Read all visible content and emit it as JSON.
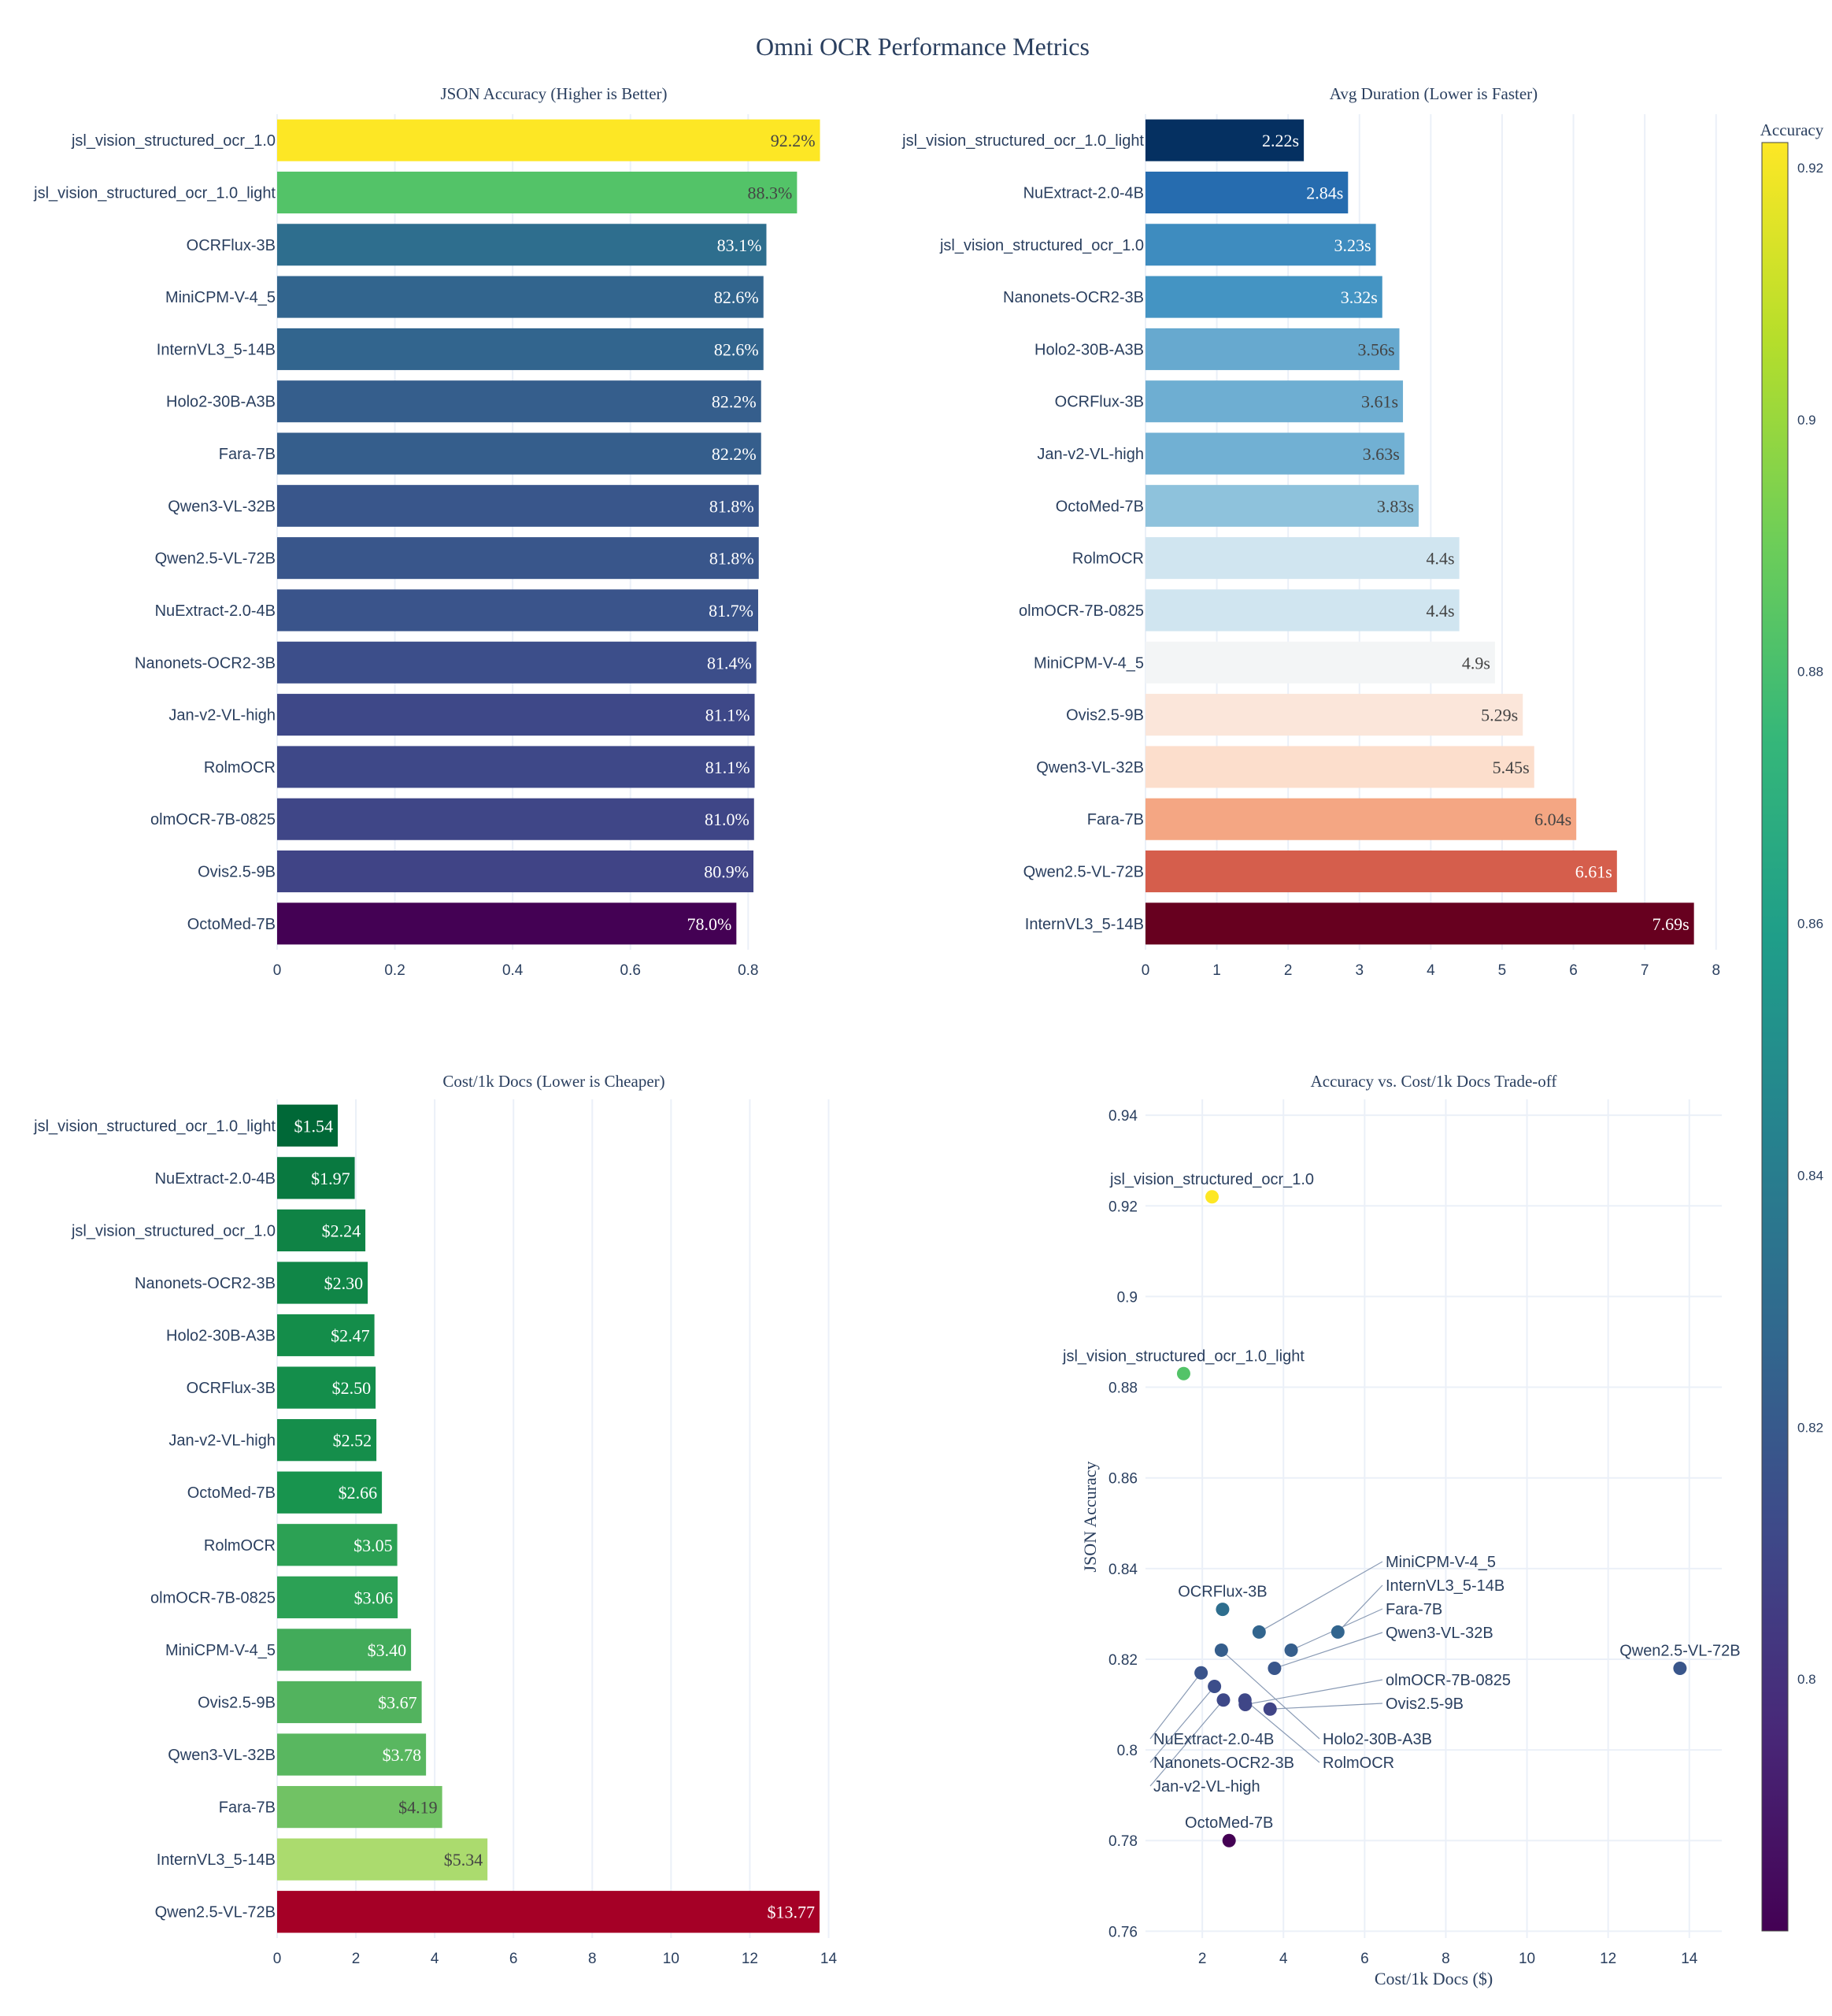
{
  "title": "Omni OCR Performance Metrics",
  "chart_data": [
    {
      "type": "bar",
      "orientation": "horizontal",
      "title": "JSON Accuracy (Higher is Better)",
      "categories": [
        "jsl_vision_structured_ocr_1.0",
        "jsl_vision_structured_ocr_1.0_light",
        "OCRFlux-3B",
        "MiniCPM-V-4_5",
        "InternVL3_5-14B",
        "Holo2-30B-A3B",
        "Fara-7B",
        "Qwen3-VL-32B",
        "Qwen2.5-VL-72B",
        "NuExtract-2.0-4B",
        "Nanonets-OCR2-3B",
        "Jan-v2-VL-high",
        "RolmOCR",
        "olmOCR-7B-0825",
        "Ovis2.5-9B",
        "OctoMed-7B"
      ],
      "values": [
        0.922,
        0.883,
        0.831,
        0.826,
        0.826,
        0.822,
        0.822,
        0.818,
        0.818,
        0.817,
        0.814,
        0.811,
        0.811,
        0.81,
        0.809,
        0.78
      ],
      "data_labels": [
        "92.2%",
        "88.3%",
        "83.1%",
        "82.6%",
        "82.6%",
        "82.2%",
        "82.2%",
        "81.8%",
        "81.8%",
        "81.7%",
        "81.4%",
        "81.1%",
        "81.1%",
        "81.0%",
        "80.9%",
        "78.0%"
      ],
      "xlim": [
        0,
        0.94
      ],
      "xticks": [
        "0",
        "0.2",
        "0.4",
        "0.6",
        "0.8"
      ],
      "colorscale": "Viridis",
      "grid": true
    },
    {
      "type": "bar",
      "orientation": "horizontal",
      "title": "Avg Duration (Lower is Faster)",
      "categories": [
        "jsl_vision_structured_ocr_1.0_light",
        "NuExtract-2.0-4B",
        "jsl_vision_structured_ocr_1.0",
        "Nanonets-OCR2-3B",
        "Holo2-30B-A3B",
        "OCRFlux-3B",
        "Jan-v2-VL-high",
        "OctoMed-7B",
        "RolmOCR",
        "olmOCR-7B-0825",
        "MiniCPM-V-4_5",
        "Ovis2.5-9B",
        "Qwen3-VL-32B",
        "Fara-7B",
        "Qwen2.5-VL-72B",
        "InternVL3_5-14B"
      ],
      "values": [
        2.22,
        2.84,
        3.23,
        3.32,
        3.56,
        3.61,
        3.63,
        3.83,
        4.4,
        4.4,
        4.9,
        5.29,
        5.45,
        6.04,
        6.61,
        7.69
      ],
      "data_labels": [
        "2.22s",
        "2.84s",
        "3.23s",
        "3.32s",
        "3.56s",
        "3.61s",
        "3.63s",
        "3.83s",
        "4.4s",
        "4.4s",
        "4.9s",
        "5.29s",
        "5.45s",
        "6.04s",
        "6.61s",
        "7.69s"
      ],
      "xlim": [
        0,
        8.08
      ],
      "xticks": [
        "0",
        "1",
        "2",
        "3",
        "4",
        "5",
        "6",
        "7",
        "8"
      ],
      "colorscale": "RdBu_r",
      "grid": true
    },
    {
      "type": "bar",
      "orientation": "horizontal",
      "title": "Cost/1k Docs (Lower is Cheaper)",
      "categories": [
        "jsl_vision_structured_ocr_1.0_light",
        "NuExtract-2.0-4B",
        "jsl_vision_structured_ocr_1.0",
        "Nanonets-OCR2-3B",
        "Holo2-30B-A3B",
        "OCRFlux-3B",
        "Jan-v2-VL-high",
        "OctoMed-7B",
        "RolmOCR",
        "olmOCR-7B-0825",
        "MiniCPM-V-4_5",
        "Ovis2.5-9B",
        "Qwen3-VL-32B",
        "Fara-7B",
        "InternVL3_5-14B",
        "Qwen2.5-VL-72B"
      ],
      "values": [
        1.54,
        1.97,
        2.24,
        2.3,
        2.47,
        2.5,
        2.52,
        2.66,
        3.05,
        3.06,
        3.4,
        3.67,
        3.78,
        4.19,
        5.34,
        13.77
      ],
      "data_labels": [
        "$1.54",
        "$1.97",
        "$2.24",
        "$2.30",
        "$2.47",
        "$2.50",
        "$2.52",
        "$2.66",
        "$3.05",
        "$3.06",
        "$3.40",
        "$3.67",
        "$3.78",
        "$4.19",
        "$5.34",
        "$13.77"
      ],
      "xlim": [
        0,
        14.05
      ],
      "xticks": [
        "0",
        "2",
        "4",
        "6",
        "8",
        "10",
        "12",
        "14"
      ],
      "colorscale": "RdYlGn_r",
      "grid": true
    },
    {
      "type": "scatter",
      "title": "Accuracy vs. Cost/1k Docs Trade-off",
      "xlabel": "Cost/1k Docs ($)",
      "ylabel": "JSON Accuracy",
      "xlim": [
        0.6,
        14.8
      ],
      "ylim": [
        0.7585,
        0.9435
      ],
      "xticks": [
        "2",
        "4",
        "6",
        "8",
        "10",
        "12",
        "14"
      ],
      "yticks": [
        "0.76",
        "0.78",
        "0.8",
        "0.82",
        "0.84",
        "0.86",
        "0.88",
        "0.9",
        "0.92",
        "0.94"
      ],
      "points": [
        {
          "label": "jsl_vision_structured_ocr_1.0",
          "x": 2.24,
          "y": 0.922
        },
        {
          "label": "jsl_vision_structured_ocr_1.0_light",
          "x": 1.54,
          "y": 0.883
        },
        {
          "label": "OCRFlux-3B",
          "x": 2.5,
          "y": 0.831
        },
        {
          "label": "MiniCPM-V-4_5",
          "x": 3.4,
          "y": 0.826
        },
        {
          "label": "InternVL3_5-14B",
          "x": 5.34,
          "y": 0.826
        },
        {
          "label": "Holo2-30B-A3B",
          "x": 2.47,
          "y": 0.822
        },
        {
          "label": "Fara-7B",
          "x": 4.19,
          "y": 0.822
        },
        {
          "label": "Qwen3-VL-32B",
          "x": 3.78,
          "y": 0.818
        },
        {
          "label": "Qwen2.5-VL-72B",
          "x": 13.77,
          "y": 0.818
        },
        {
          "label": "NuExtract-2.0-4B",
          "x": 1.97,
          "y": 0.817
        },
        {
          "label": "Nanonets-OCR2-3B",
          "x": 2.3,
          "y": 0.814
        },
        {
          "label": "Jan-v2-VL-high",
          "x": 2.52,
          "y": 0.811
        },
        {
          "label": "RolmOCR",
          "x": 3.05,
          "y": 0.811
        },
        {
          "label": "olmOCR-7B-0825",
          "x": 3.06,
          "y": 0.81
        },
        {
          "label": "Ovis2.5-9B",
          "x": 3.67,
          "y": 0.809
        },
        {
          "label": "OctoMed-7B",
          "x": 2.66,
          "y": 0.78
        }
      ],
      "colorscale": "Viridis",
      "grid": true
    }
  ],
  "colorbar": {
    "title": "Accuracy",
    "range": [
      0.78,
      0.922
    ],
    "ticks": [
      "0.8",
      "0.82",
      "0.84",
      "0.86",
      "0.88",
      "0.9",
      "0.92"
    ]
  }
}
